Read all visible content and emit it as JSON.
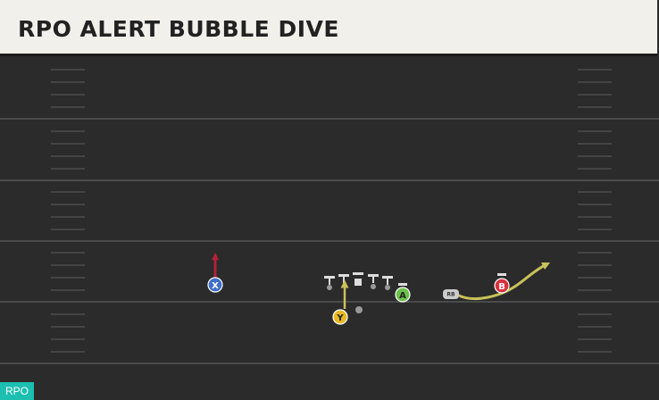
{
  "header": {
    "title": "RPO ALERT BUBBLE DIVE"
  },
  "tag": "RPO",
  "players": [
    {
      "label": "X"
    },
    {
      "label": "Y"
    },
    {
      "label": "A"
    },
    {
      "label": "B"
    },
    {
      "label": "RB"
    }
  ]
}
